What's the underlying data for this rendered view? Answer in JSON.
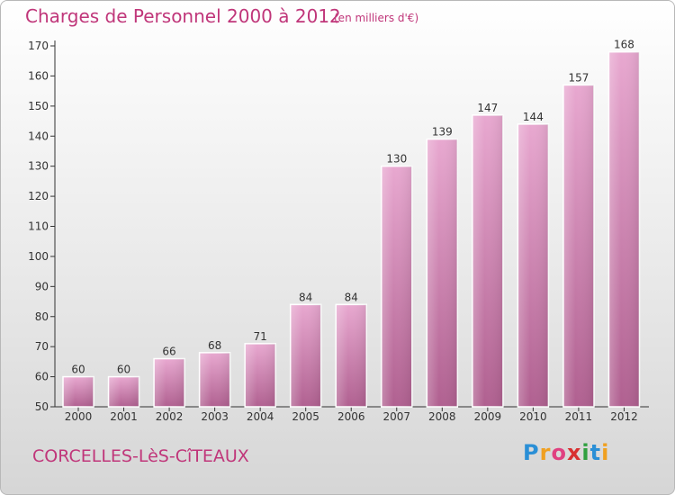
{
  "header": {
    "title": "Charges de Personnel 2000 à 2012",
    "subtitle": "(en milliers d'€)"
  },
  "footer": {
    "place": "CORCELLES-LèS-CîTEAUX",
    "logo_letters": [
      "P",
      "r",
      "o",
      "x",
      "i",
      "t",
      "i"
    ],
    "logo_colors": [
      "#2a8fd6",
      "#f0a020",
      "#e04080",
      "#d83030",
      "#30a040",
      "#2a8fd6",
      "#f0a020"
    ]
  },
  "colors": {
    "bar": "#c0679f",
    "accent": "#c0367a"
  },
  "chart_data": {
    "type": "bar",
    "title": "Charges de Personnel 2000 à 2012",
    "subtitle": "(en milliers d'€)",
    "categories": [
      "2000",
      "2001",
      "2002",
      "2003",
      "2004",
      "2005",
      "2006",
      "2007",
      "2008",
      "2009",
      "2010",
      "2011",
      "2012"
    ],
    "values": [
      60,
      60,
      66,
      68,
      71,
      84,
      84,
      130,
      139,
      147,
      144,
      157,
      168
    ],
    "ylim": [
      50,
      170
    ],
    "yticks": [
      50,
      60,
      70,
      80,
      90,
      100,
      110,
      120,
      130,
      140,
      150,
      160,
      170
    ],
    "grid": false,
    "data_labels": true
  }
}
